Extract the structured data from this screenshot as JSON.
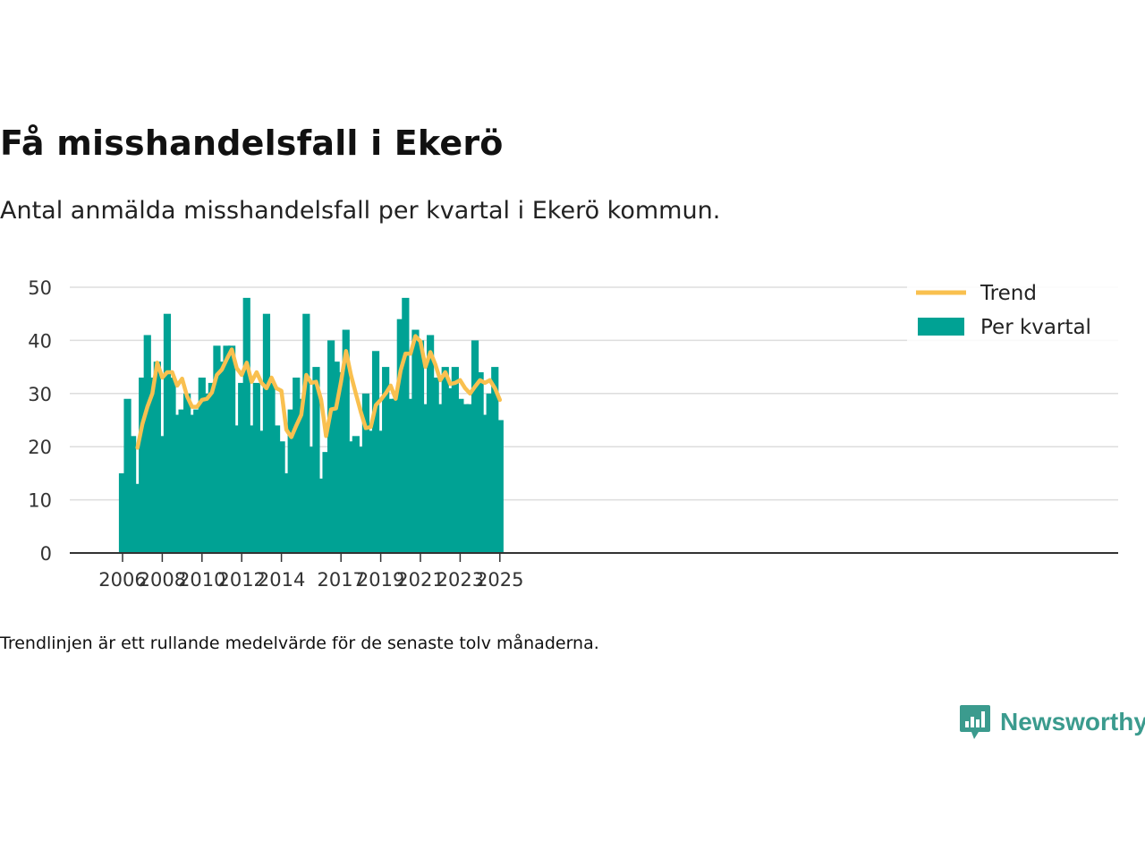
{
  "title": "Få misshandelsfall i Ekerö",
  "subtitle": "Antal anmälda misshandelsfall per kvartal i Ekerö kommun.",
  "note": "Trendlinjen är ett rullande medelvärde för de senaste tolv månaderna.",
  "brand": {
    "name": "Newsworthy",
    "icon": "newsworthy-logo-icon"
  },
  "colors": {
    "bars": "#00a294",
    "trend": "#f9c04f",
    "grid": "#dddddd",
    "axis": "#333333"
  },
  "chart_data": {
    "type": "bar",
    "x_start_year": 2006,
    "x_tick_labels": [
      "2006",
      "2008",
      "2010",
      "2012",
      "2014",
      "2017",
      "2019",
      "2021",
      "2023",
      "2025"
    ],
    "x_tick_years": [
      2006,
      2008,
      2010,
      2012,
      2014,
      2017,
      2019,
      2021,
      2023,
      2025
    ],
    "y_ticks": [
      0,
      10,
      20,
      30,
      40,
      50
    ],
    "ylim": [
      0,
      50
    ],
    "grid": true,
    "legend_position": "top-right",
    "series": [
      {
        "name": "Per kvartal",
        "type": "bar",
        "values": [
          15,
          29,
          22,
          13,
          33,
          41,
          33,
          36,
          22,
          45,
          33,
          26,
          27,
          30,
          26,
          27,
          33,
          30,
          32,
          39,
          36,
          39,
          39,
          24,
          32,
          48,
          24,
          32,
          23,
          45,
          32,
          24,
          21,
          15,
          27,
          33,
          29,
          45,
          20,
          35,
          14,
          19,
          40,
          36,
          34,
          42,
          21,
          22,
          20,
          30,
          23,
          38,
          23,
          35,
          29,
          29,
          44,
          48,
          29,
          42,
          40,
          28,
          41,
          33,
          28,
          35,
          31,
          35,
          29,
          28,
          28,
          40,
          34,
          26,
          30,
          35,
          25
        ]
      },
      {
        "name": "Trend",
        "type": "line",
        "start_index": 3,
        "values": [
          19.8,
          24.3,
          27.5,
          30.0,
          35.8,
          33.0,
          34.0,
          34.0,
          31.5,
          32.8,
          29.5,
          27.5,
          27.5,
          28.8,
          29.0,
          30.2,
          33.5,
          34.5,
          36.5,
          38.3,
          34.8,
          33.5,
          35.8,
          32.2,
          34.0,
          32.0,
          31.0,
          33.0,
          31.0,
          30.5,
          23.2,
          21.8,
          24.0,
          26.0,
          33.5,
          32.0,
          32.2,
          28.8,
          22.0,
          27.0,
          27.2,
          32.2,
          38.0,
          33.5,
          30.0,
          26.5,
          23.5,
          23.7,
          27.8,
          28.8,
          30.0,
          31.5,
          29.0,
          34.3,
          37.5,
          37.5,
          40.8,
          39.8,
          35.0,
          37.8,
          35.5,
          32.5,
          34.0,
          31.8,
          32.0,
          32.5,
          31.0,
          30.0,
          31.3,
          32.5,
          32.0,
          32.5,
          31.0,
          28.8
        ]
      }
    ],
    "legend": [
      {
        "name": "Trend",
        "marker": "line"
      },
      {
        "name": "Per kvartal",
        "marker": "box"
      }
    ]
  }
}
